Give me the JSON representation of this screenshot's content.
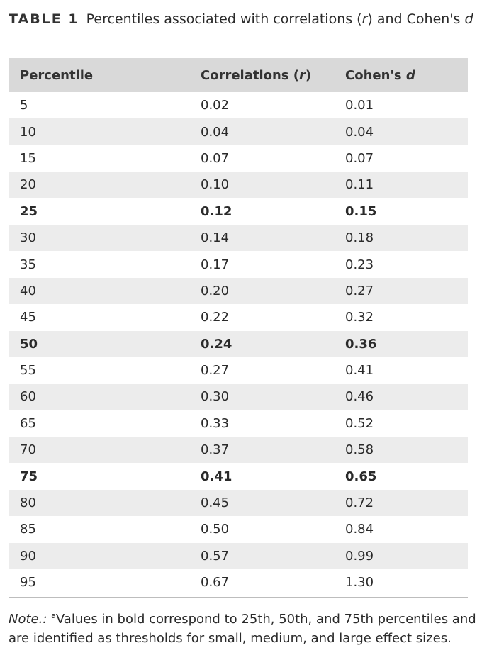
{
  "caption": {
    "label": "TABLE 1",
    "text_before": "Percentiles associated with correlations (",
    "r_italic": "r",
    "text_mid": ") and Cohen's ",
    "d_italic": "d"
  },
  "header": {
    "percentile": "Percentile",
    "corr_prefix": "Correlations (",
    "corr_italic": "r",
    "corr_suffix": ")",
    "cohen_prefix": "Cohen's ",
    "cohen_italic": "d"
  },
  "rows": [
    {
      "percentile": "5",
      "r": "0.02",
      "d": "0.01",
      "bold": false
    },
    {
      "percentile": "10",
      "r": "0.04",
      "d": "0.04",
      "bold": false
    },
    {
      "percentile": "15",
      "r": "0.07",
      "d": "0.07",
      "bold": false
    },
    {
      "percentile": "20",
      "r": "0.10",
      "d": "0.11",
      "bold": false
    },
    {
      "percentile": "25",
      "r": "0.12",
      "d": "0.15",
      "bold": true
    },
    {
      "percentile": "30",
      "r": "0.14",
      "d": "0.18",
      "bold": false
    },
    {
      "percentile": "35",
      "r": "0.17",
      "d": "0.23",
      "bold": false
    },
    {
      "percentile": "40",
      "r": "0.20",
      "d": "0.27",
      "bold": false
    },
    {
      "percentile": "45",
      "r": "0.22",
      "d": "0.32",
      "bold": false
    },
    {
      "percentile": "50",
      "r": "0.24",
      "d": "0.36",
      "bold": true
    },
    {
      "percentile": "55",
      "r": "0.27",
      "d": "0.41",
      "bold": false
    },
    {
      "percentile": "60",
      "r": "0.30",
      "d": "0.46",
      "bold": false
    },
    {
      "percentile": "65",
      "r": "0.33",
      "d": "0.52",
      "bold": false
    },
    {
      "percentile": "70",
      "r": "0.37",
      "d": "0.58",
      "bold": false
    },
    {
      "percentile": "75",
      "r": "0.41",
      "d": "0.65",
      "bold": true
    },
    {
      "percentile": "80",
      "r": "0.45",
      "d": "0.72",
      "bold": false
    },
    {
      "percentile": "85",
      "r": "0.50",
      "d": "0.84",
      "bold": false
    },
    {
      "percentile": "90",
      "r": "0.57",
      "d": "0.99",
      "bold": false
    },
    {
      "percentile": "95",
      "r": "0.67",
      "d": "1.30",
      "bold": false
    }
  ],
  "note": {
    "label": "Note.:",
    "sup": "a",
    "text": "Values in bold correspond to 25th, 50th, and 75th percentiles and are identified as thresholds for small, medium, and large effect sizes."
  },
  "colors": {
    "header_bg": "#d9d9d9",
    "alt_row_bg": "#ececec",
    "rule": "#bdbdbd"
  }
}
